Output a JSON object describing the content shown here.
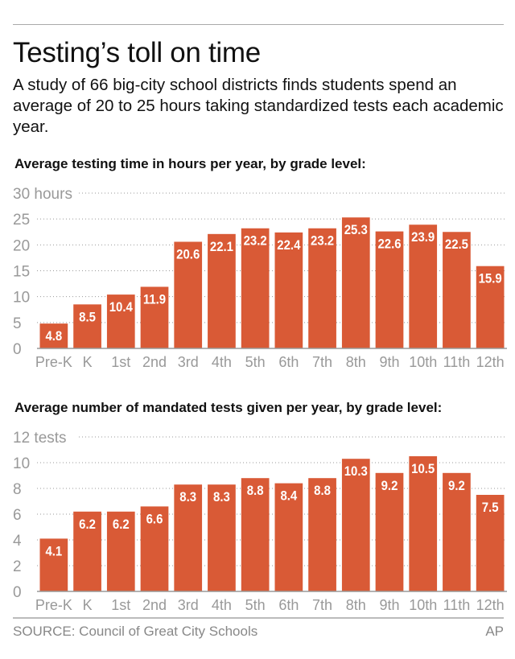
{
  "title": "Testing’s toll on time",
  "subtitle": "A study of 66 big-city school districts finds students spend an average of 20 to 25 hours taking standardized tests each academic year.",
  "source": "SOURCE: Council of Great City Schools",
  "credit": "AP",
  "colors": {
    "bar": "#d95a36",
    "label": "#ffffff",
    "axis_text": "#999999",
    "grid": "#999999"
  },
  "chart_data": [
    {
      "type": "bar",
      "title": "Average testing time in hours per year, by grade level:",
      "categories": [
        "Pre-K",
        "K",
        "1st",
        "2nd",
        "3rd",
        "4th",
        "5th",
        "6th",
        "7th",
        "8th",
        "9th",
        "10th",
        "11th",
        "12th"
      ],
      "values": [
        4.8,
        8.5,
        10.4,
        11.9,
        20.6,
        22.1,
        23.2,
        22.4,
        23.2,
        25.3,
        22.6,
        23.9,
        22.5,
        15.9
      ],
      "value_labels": [
        "4.8",
        "8.5",
        "10.4",
        "11.9",
        "20.6",
        "22.1",
        "23.2",
        "22.4",
        "23.2",
        "25.3",
        "22.6",
        "23.9",
        "22.5",
        "15.9"
      ],
      "yticks": [
        0,
        5,
        10,
        15,
        20,
        25,
        30
      ],
      "ytick_labels": [
        "0",
        "5",
        "10",
        "15",
        "20",
        "25",
        "30 hours"
      ],
      "ylim": [
        0,
        30
      ],
      "grid": true
    },
    {
      "type": "bar",
      "title": "Average number of mandated tests given per year, by grade level:",
      "categories": [
        "Pre-K",
        "K",
        "1st",
        "2nd",
        "3rd",
        "4th",
        "5th",
        "6th",
        "7th",
        "8th",
        "9th",
        "10th",
        "11th",
        "12th"
      ],
      "values": [
        4.1,
        6.2,
        6.2,
        6.6,
        8.3,
        8.3,
        8.8,
        8.4,
        8.8,
        10.3,
        9.2,
        10.5,
        9.2,
        7.5
      ],
      "value_labels": [
        "4.1",
        "6.2",
        "6.2",
        "6.6",
        "8.3",
        "8.3",
        "8.8",
        "8.4",
        "8.8",
        "10.3",
        "9.2",
        "10.5",
        "9.2",
        "7.5"
      ],
      "yticks": [
        0,
        2,
        4,
        6,
        8,
        10,
        12
      ],
      "ytick_labels": [
        "0",
        "2",
        "4",
        "6",
        "8",
        "10",
        "12 tests"
      ],
      "ylim": [
        0,
        12
      ],
      "grid": true
    }
  ]
}
